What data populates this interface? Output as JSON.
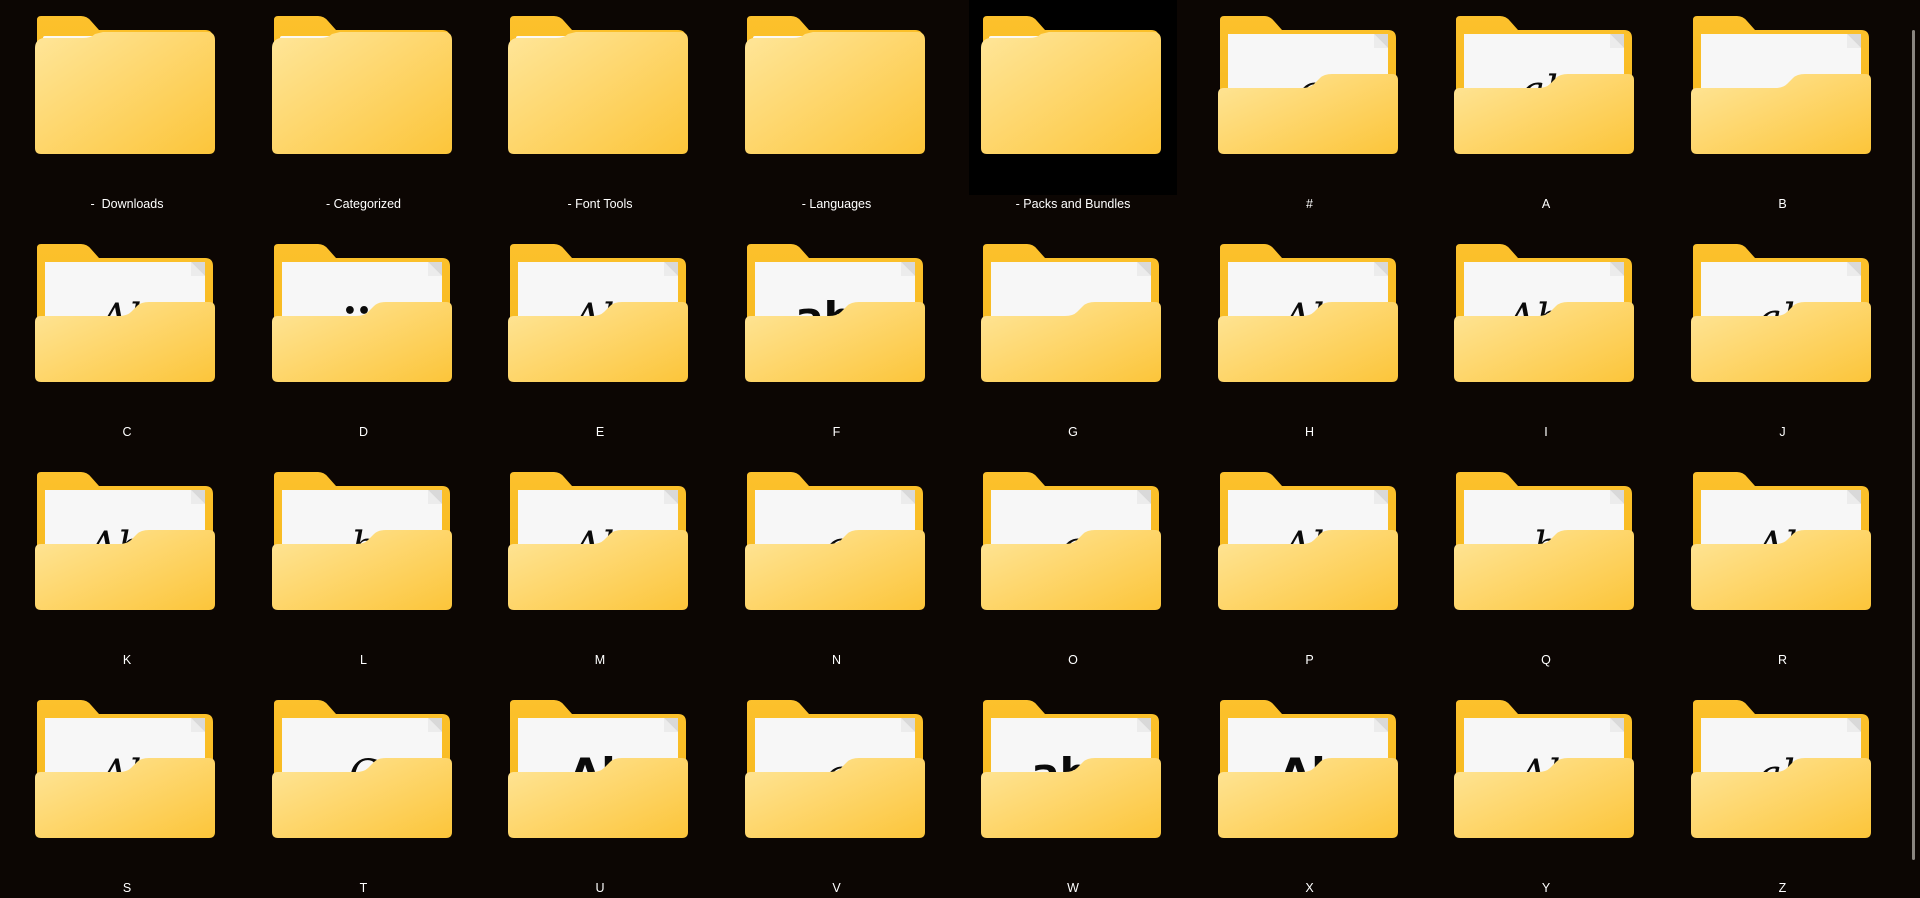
{
  "folders": [
    {
      "name": "-  Downloads",
      "preview": null,
      "selected": false
    },
    {
      "name": "- Categorized",
      "preview": null,
      "selected": false
    },
    {
      "name": "- Font Tools",
      "preview": null,
      "selected": false
    },
    {
      "name": "- Languages",
      "preview": null,
      "selected": false
    },
    {
      "name": "- Packs and Bundles",
      "preview": null,
      "selected": true
    },
    {
      "name": "#",
      "preview": {
        "style": "script",
        "glyph": "a"
      },
      "selected": false
    },
    {
      "name": "A",
      "preview": {
        "style": "script",
        "glyph": "ab"
      },
      "selected": false
    },
    {
      "name": "B",
      "preview": {
        "style": "blank",
        "glyph": ""
      },
      "selected": false
    },
    {
      "name": "C",
      "preview": {
        "style": "script",
        "glyph": "Ab"
      },
      "selected": false
    },
    {
      "name": "D",
      "preview": {
        "style": "dots",
        "glyph": "•••"
      },
      "selected": false
    },
    {
      "name": "E",
      "preview": {
        "style": "script",
        "glyph": "Ab"
      },
      "selected": false
    },
    {
      "name": "F",
      "preview": {
        "style": "bold",
        "glyph": "abc"
      },
      "selected": false
    },
    {
      "name": "G",
      "preview": {
        "style": "blank",
        "glyph": ""
      },
      "selected": false
    },
    {
      "name": "H",
      "preview": {
        "style": "script",
        "glyph": "Ab"
      },
      "selected": false
    },
    {
      "name": "I",
      "preview": {
        "style": "script",
        "glyph": "Aba"
      },
      "selected": false
    },
    {
      "name": "J",
      "preview": {
        "style": "script",
        "glyph": "ab"
      },
      "selected": false
    },
    {
      "name": "K",
      "preview": {
        "style": "script",
        "glyph": "Abc"
      },
      "selected": false
    },
    {
      "name": "L",
      "preview": {
        "style": "script",
        "glyph": "b"
      },
      "selected": false
    },
    {
      "name": "M",
      "preview": {
        "style": "script",
        "glyph": "Ab"
      },
      "selected": false
    },
    {
      "name": "N",
      "preview": {
        "style": "script",
        "glyph": "a"
      },
      "selected": false
    },
    {
      "name": "O",
      "preview": {
        "style": "script",
        "glyph": "a"
      },
      "selected": false
    },
    {
      "name": "P",
      "preview": {
        "style": "script",
        "glyph": "Ab"
      },
      "selected": false
    },
    {
      "name": "Q",
      "preview": {
        "style": "script",
        "glyph": "b"
      },
      "selected": false
    },
    {
      "name": "R",
      "preview": {
        "style": "script",
        "glyph": "Ab"
      },
      "selected": false
    },
    {
      "name": "S",
      "preview": {
        "style": "script",
        "glyph": "Ab"
      },
      "selected": false
    },
    {
      "name": "T",
      "preview": {
        "style": "script",
        "glyph": "C"
      },
      "selected": false
    },
    {
      "name": "U",
      "preview": {
        "style": "bold",
        "glyph": "Ab"
      },
      "selected": false
    },
    {
      "name": "V",
      "preview": {
        "style": "script",
        "glyph": "a"
      },
      "selected": false
    },
    {
      "name": "W",
      "preview": {
        "style": "bold",
        "glyph": "abc"
      },
      "selected": false
    },
    {
      "name": "X",
      "preview": {
        "style": "bold",
        "glyph": "Ab"
      },
      "selected": false
    },
    {
      "name": "Y",
      "preview": {
        "style": "script",
        "glyph": "Ab"
      },
      "selected": false
    },
    {
      "name": "Z",
      "preview": {
        "style": "script",
        "glyph": "ab"
      },
      "selected": false
    }
  ],
  "colors": {
    "background": "#0c0603",
    "folder_back": "#f6b81d",
    "folder_front_light": "#ffe69a",
    "folder_front_dark": "#fcc53a",
    "paper": "#f7f7f7",
    "label_text": "#ffffff",
    "selection": "#000000"
  },
  "icons": {
    "empty_folder": "folder-icon",
    "content_folder": "folder-with-document-icon"
  }
}
